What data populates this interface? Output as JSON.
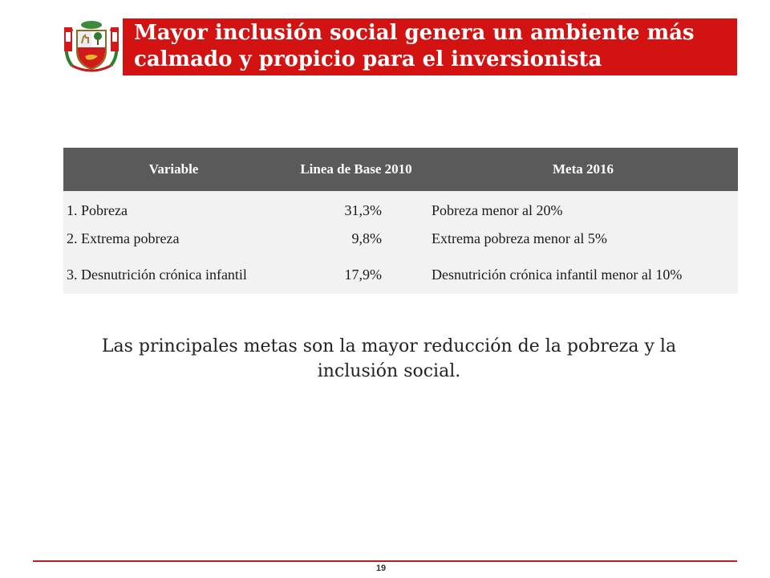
{
  "slide": {
    "title_line1": "Mayor inclusión social genera un ambiente más",
    "title_line2": "calmado y propicio para el inversionista",
    "logo_icon": "peru-coat-of-arms-icon",
    "accent_color": "#d31212",
    "caption_line1": "Las principales metas son la mayor reducción de la pobreza y la",
    "caption_line2": "inclusión social.",
    "page_number": "19"
  },
  "table": {
    "headers": [
      "Variable",
      "Linea de Base 2010",
      "Meta 2016"
    ],
    "rows": [
      [
        "1. Pobreza",
        "31,3%",
        "Pobreza menor al 20%"
      ],
      [
        "2. Extrema pobreza",
        "9,8%",
        "Extrema pobreza menor al 5%"
      ],
      [
        "3. Desnutrición crónica infantil",
        "17,9%",
        "Desnutrición crónica infantil menor al 10%"
      ]
    ]
  }
}
